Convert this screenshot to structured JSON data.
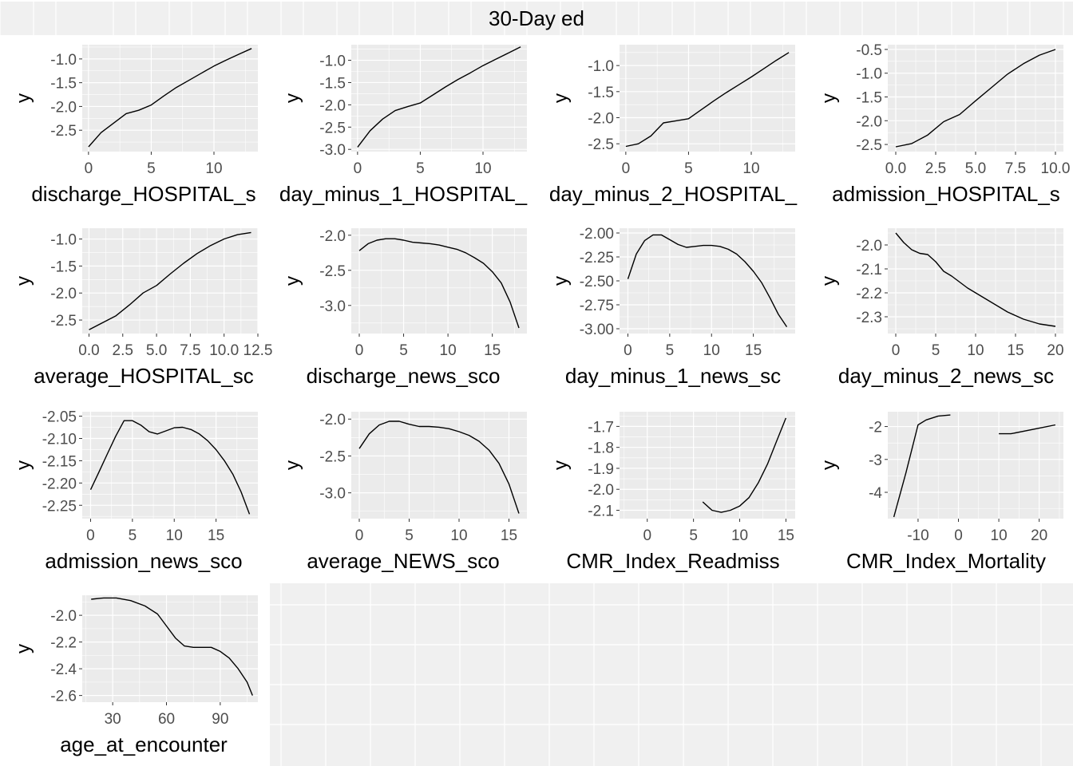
{
  "title": "30-Day ed",
  "colors": {
    "panel_bg": "#ebebeb",
    "grid": "#ffffff",
    "line": "#000000",
    "tick_text": "#4d4d4d",
    "label_text": "#000000",
    "page_bg": "#ffffff",
    "empty_bg": "#f0f0f0"
  },
  "chart_data": [
    {
      "type": "line",
      "xlabel": "discharge_HOSPITAL_s",
      "ylabel": "y",
      "xlim": [
        -0.5,
        13.5
      ],
      "ylim": [
        -2.95,
        -0.7
      ],
      "xticks": [
        0,
        5,
        10
      ],
      "xtick_labels": [
        "0",
        "5",
        "10"
      ],
      "yticks": [
        -1.0,
        -1.5,
        -2.0,
        -2.5
      ],
      "ytick_labels": [
        "-1.0",
        "-1.5",
        "-2.0",
        "-2.5"
      ],
      "series": [
        {
          "x": [
            0,
            1,
            2,
            3,
            4,
            5,
            6,
            7,
            8,
            9,
            10,
            11,
            12,
            13
          ],
          "y": [
            -2.85,
            -2.55,
            -2.35,
            -2.15,
            -2.08,
            -1.97,
            -1.78,
            -1.6,
            -1.45,
            -1.3,
            -1.15,
            -1.02,
            -0.9,
            -0.78
          ]
        }
      ]
    },
    {
      "type": "line",
      "xlabel": "day_minus_1_HOSPITAL_",
      "ylabel": "y",
      "xlim": [
        -0.5,
        13.5
      ],
      "ylim": [
        -3.05,
        -0.65
      ],
      "xticks": [
        0,
        5,
        10
      ],
      "xtick_labels": [
        "0",
        "5",
        "10"
      ],
      "yticks": [
        -1.0,
        -1.5,
        -2.0,
        -2.5,
        -3.0
      ],
      "ytick_labels": [
        "-1.0",
        "-1.5",
        "-2.0",
        "-2.5",
        "-3.0"
      ],
      "series": [
        {
          "x": [
            0,
            1,
            2,
            3,
            4,
            5,
            6,
            7,
            8,
            9,
            10,
            11,
            12,
            13
          ],
          "y": [
            -2.95,
            -2.58,
            -2.32,
            -2.13,
            -2.04,
            -1.96,
            -1.78,
            -1.6,
            -1.43,
            -1.28,
            -1.12,
            -0.98,
            -0.84,
            -0.7
          ]
        }
      ]
    },
    {
      "type": "line",
      "xlabel": "day_minus_2_HOSPITAL_",
      "ylabel": "y",
      "xlim": [
        -0.5,
        13.5
      ],
      "ylim": [
        -2.65,
        -0.6
      ],
      "xticks": [
        0,
        5,
        10
      ],
      "xtick_labels": [
        "0",
        "5",
        "10"
      ],
      "yticks": [
        -1.0,
        -1.5,
        -2.0,
        -2.5
      ],
      "ytick_labels": [
        "-1.0",
        "-1.5",
        "-2.0",
        "-2.5"
      ],
      "series": [
        {
          "x": [
            0,
            1,
            2,
            3,
            4,
            5,
            6,
            7,
            8,
            9,
            10,
            11,
            12,
            13
          ],
          "y": [
            -2.55,
            -2.5,
            -2.35,
            -2.1,
            -2.06,
            -2.02,
            -1.85,
            -1.68,
            -1.52,
            -1.37,
            -1.22,
            -1.06,
            -0.9,
            -0.75
          ]
        }
      ]
    },
    {
      "type": "line",
      "xlabel": "admission_HOSPITAL_s",
      "ylabel": "y",
      "xlim": [
        -0.5,
        10.5
      ],
      "ylim": [
        -2.65,
        -0.4
      ],
      "xticks": [
        0,
        2.5,
        5,
        7.5,
        10
      ],
      "xtick_labels": [
        "0.0",
        "2.5",
        "5.0",
        "7.5",
        "10.0"
      ],
      "yticks": [
        -0.5,
        -1.0,
        -1.5,
        -2.0,
        -2.5
      ],
      "ytick_labels": [
        "-0.5",
        "-1.0",
        "-1.5",
        "-2.0",
        "-2.5"
      ],
      "series": [
        {
          "x": [
            0,
            1,
            2,
            3,
            4,
            5,
            6,
            7,
            8,
            9,
            10
          ],
          "y": [
            -2.55,
            -2.48,
            -2.3,
            -2.02,
            -1.87,
            -1.58,
            -1.3,
            -1.02,
            -0.8,
            -0.62,
            -0.5
          ]
        }
      ]
    },
    {
      "type": "line",
      "xlabel": "average_HOSPITAL_sc",
      "ylabel": "y",
      "xlim": [
        -0.5,
        12.5
      ],
      "ylim": [
        -2.75,
        -0.8
      ],
      "xticks": [
        0,
        2.5,
        5,
        7.5,
        10,
        12.5
      ],
      "xtick_labels": [
        "0.0",
        "2.5",
        "5.0",
        "7.5",
        "10.0",
        "12.5"
      ],
      "yticks": [
        -1.0,
        -1.5,
        -2.0,
        -2.5
      ],
      "ytick_labels": [
        "-1.0",
        "-1.5",
        "-2.0",
        "-2.5"
      ],
      "series": [
        {
          "x": [
            0,
            1,
            2,
            3,
            4,
            5,
            6,
            7,
            8,
            9,
            10,
            11,
            12
          ],
          "y": [
            -2.68,
            -2.55,
            -2.42,
            -2.22,
            -2.0,
            -1.86,
            -1.65,
            -1.45,
            -1.27,
            -1.12,
            -1.0,
            -0.92,
            -0.88
          ]
        }
      ]
    },
    {
      "type": "line",
      "xlabel": "discharge_news_sco",
      "ylabel": "y",
      "xlim": [
        -0.9,
        18.9
      ],
      "ylim": [
        -3.4,
        -1.9
      ],
      "xticks": [
        0,
        5,
        10,
        15
      ],
      "xtick_labels": [
        "0",
        "5",
        "10",
        "15"
      ],
      "yticks": [
        -2.0,
        -2.5,
        -3.0
      ],
      "ytick_labels": [
        "-2.0",
        "-2.5",
        "-3.0"
      ],
      "series": [
        {
          "x": [
            0,
            1,
            2,
            3,
            4,
            5,
            6,
            7,
            8,
            9,
            10,
            11,
            12,
            13,
            14,
            15,
            16,
            17,
            18
          ],
          "y": [
            -2.22,
            -2.12,
            -2.07,
            -2.05,
            -2.05,
            -2.07,
            -2.1,
            -2.11,
            -2.12,
            -2.14,
            -2.17,
            -2.2,
            -2.25,
            -2.32,
            -2.4,
            -2.52,
            -2.68,
            -2.95,
            -3.32
          ]
        }
      ]
    },
    {
      "type": "line",
      "xlabel": "day_minus_1_news_sc",
      "ylabel": "y",
      "xlim": [
        -1.0,
        20.0
      ],
      "ylim": [
        -3.05,
        -1.95
      ],
      "xticks": [
        0,
        5,
        10,
        15
      ],
      "xtick_labels": [
        "0",
        "5",
        "10",
        "15"
      ],
      "yticks": [
        -2.0,
        -2.25,
        -2.5,
        -2.75,
        -3.0
      ],
      "ytick_labels": [
        "-2.00",
        "-2.25",
        "-2.50",
        "-2.75",
        "-3.00"
      ],
      "series": [
        {
          "x": [
            0,
            1,
            2,
            3,
            4,
            5,
            6,
            7,
            8,
            9,
            10,
            11,
            12,
            13,
            14,
            15,
            16,
            17,
            18,
            19
          ],
          "y": [
            -2.48,
            -2.22,
            -2.08,
            -2.02,
            -2.02,
            -2.07,
            -2.12,
            -2.15,
            -2.14,
            -2.13,
            -2.13,
            -2.14,
            -2.17,
            -2.22,
            -2.3,
            -2.4,
            -2.52,
            -2.68,
            -2.85,
            -2.98
          ]
        }
      ]
    },
    {
      "type": "line",
      "xlabel": "day_minus_2_news_sc",
      "ylabel": "y",
      "xlim": [
        -1.0,
        21.0
      ],
      "ylim": [
        -2.37,
        -1.93
      ],
      "xticks": [
        0,
        5,
        10,
        15,
        20
      ],
      "xtick_labels": [
        "0",
        "5",
        "10",
        "15",
        "20"
      ],
      "yticks": [
        -2.0,
        -2.1,
        -2.2,
        -2.3
      ],
      "ytick_labels": [
        "-2.0",
        "-2.1",
        "-2.2",
        "-2.3"
      ],
      "series": [
        {
          "x": [
            0,
            1,
            2,
            3,
            4,
            5,
            6,
            7,
            8,
            9,
            10,
            11,
            12,
            13,
            14,
            15,
            16,
            17,
            18,
            19,
            20
          ],
          "y": [
            -1.95,
            -1.99,
            -2.02,
            -2.035,
            -2.04,
            -2.07,
            -2.11,
            -2.13,
            -2.155,
            -2.18,
            -2.2,
            -2.22,
            -2.24,
            -2.26,
            -2.28,
            -2.295,
            -2.31,
            -2.32,
            -2.33,
            -2.335,
            -2.34
          ]
        }
      ]
    },
    {
      "type": "line",
      "xlabel": "admission_news_sco",
      "ylabel": "y",
      "xlim": [
        -1.0,
        20.0
      ],
      "ylim": [
        -2.28,
        -2.04
      ],
      "xticks": [
        0,
        5,
        10,
        15
      ],
      "xtick_labels": [
        "0",
        "5",
        "10",
        "15"
      ],
      "yticks": [
        -2.05,
        -2.1,
        -2.15,
        -2.2,
        -2.25
      ],
      "ytick_labels": [
        "-2.05",
        "-2.10",
        "-2.15",
        "-2.20",
        "-2.25"
      ],
      "series": [
        {
          "x": [
            0,
            1,
            2,
            3,
            4,
            5,
            6,
            7,
            8,
            9,
            10,
            11,
            12,
            13,
            14,
            15,
            16,
            17,
            18,
            19
          ],
          "y": [
            -2.215,
            -2.175,
            -2.135,
            -2.095,
            -2.06,
            -2.06,
            -2.07,
            -2.085,
            -2.09,
            -2.083,
            -2.076,
            -2.075,
            -2.08,
            -2.09,
            -2.105,
            -2.125,
            -2.15,
            -2.18,
            -2.22,
            -2.27
          ]
        }
      ]
    },
    {
      "type": "line",
      "xlabel": "average_NEWS_sco",
      "ylabel": "y",
      "xlim": [
        -0.8,
        16.8
      ],
      "ylim": [
        -3.35,
        -1.9
      ],
      "xticks": [
        0,
        5,
        10,
        15
      ],
      "xtick_labels": [
        "0",
        "5",
        "10",
        "15"
      ],
      "yticks": [
        -2.0,
        -2.5,
        -3.0
      ],
      "ytick_labels": [
        "-2.0",
        "-2.5",
        "-3.0"
      ],
      "series": [
        {
          "x": [
            0,
            1,
            2,
            3,
            4,
            5,
            6,
            7,
            8,
            9,
            10,
            11,
            12,
            13,
            14,
            15,
            16
          ],
          "y": [
            -2.4,
            -2.2,
            -2.08,
            -2.03,
            -2.03,
            -2.07,
            -2.1,
            -2.1,
            -2.11,
            -2.13,
            -2.17,
            -2.22,
            -2.3,
            -2.42,
            -2.6,
            -2.88,
            -3.28
          ]
        }
      ]
    },
    {
      "type": "line",
      "xlabel": "CMR_Index_Readmiss",
      "ylabel": "y",
      "xlim": [
        -3.0,
        16.0
      ],
      "ylim": [
        -2.14,
        -1.63
      ],
      "xticks": [
        0,
        5,
        10,
        15
      ],
      "xtick_labels": [
        "0",
        "5",
        "10",
        "15"
      ],
      "yticks": [
        -1.7,
        -1.8,
        -1.9,
        -2.0,
        -2.1
      ],
      "ytick_labels": [
        "-1.7",
        "-1.8",
        "-1.9",
        "-2.0",
        "-2.1"
      ],
      "series": [
        {
          "x": [
            6,
            7,
            8,
            9,
            10,
            11,
            12,
            13,
            14,
            15
          ],
          "y": [
            -2.06,
            -2.1,
            -2.11,
            -2.1,
            -2.08,
            -2.04,
            -1.97,
            -1.88,
            -1.77,
            -1.66
          ]
        }
      ]
    },
    {
      "type": "line",
      "xlabel": "CMR_Index_Mortality",
      "ylabel": "y",
      "xlim": [
        -17.5,
        26.0
      ],
      "ylim": [
        -4.8,
        -1.55
      ],
      "xticks": [
        -10,
        0,
        10,
        20
      ],
      "xtick_labels": [
        "-10",
        "0",
        "10",
        "20"
      ],
      "yticks": [
        -2,
        -3,
        -4
      ],
      "ytick_labels": [
        "-2",
        "-3",
        "-4"
      ],
      "series": [
        {
          "x": [
            -16,
            -13,
            -10,
            -8,
            -5,
            -2
          ],
          "y": [
            -4.75,
            -3.4,
            -1.95,
            -1.8,
            -1.68,
            -1.65
          ]
        },
        {
          "x": [
            10,
            13,
            20,
            24
          ],
          "y": [
            -2.22,
            -2.22,
            -2.05,
            -1.95
          ]
        }
      ]
    },
    {
      "type": "line",
      "xlabel": "age_at_encounter",
      "ylabel": "y",
      "xlim": [
        13.0,
        111.0
      ],
      "ylim": [
        -2.65,
        -1.85
      ],
      "xticks": [
        30,
        60,
        90
      ],
      "xtick_labels": [
        "30",
        "60",
        "90"
      ],
      "yticks": [
        -2.0,
        -2.2,
        -2.4,
        -2.6
      ],
      "ytick_labels": [
        "-2.0",
        "-2.2",
        "-2.4",
        "-2.6"
      ],
      "series": [
        {
          "x": [
            18,
            25,
            32,
            40,
            48,
            55,
            60,
            65,
            70,
            75,
            80,
            85,
            90,
            95,
            100,
            105,
            108
          ],
          "y": [
            -1.88,
            -1.87,
            -1.87,
            -1.89,
            -1.93,
            -1.99,
            -2.08,
            -2.17,
            -2.23,
            -2.24,
            -2.24,
            -2.24,
            -2.27,
            -2.32,
            -2.4,
            -2.5,
            -2.6
          ]
        }
      ]
    }
  ]
}
